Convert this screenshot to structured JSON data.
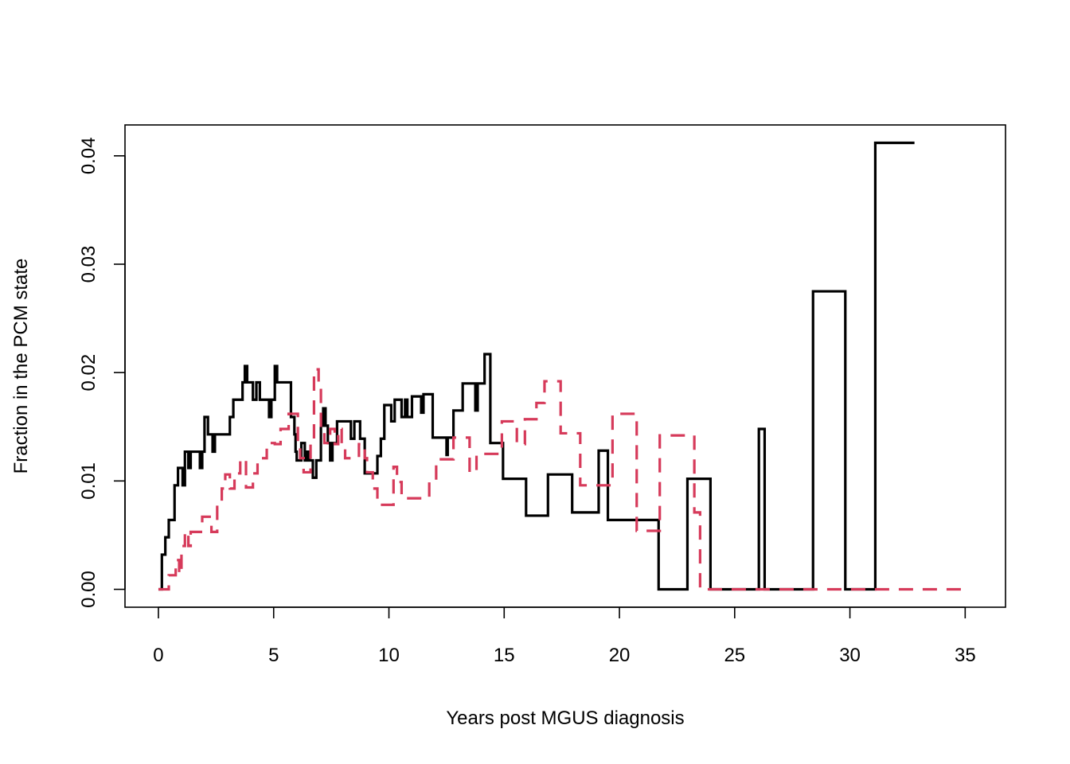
{
  "chart_data": {
    "type": "line",
    "title": "",
    "xlabel": "Years post MGUS diagnosis",
    "ylabel": "Fraction in the PCM state",
    "xlim": [
      -1.45,
      36.75
    ],
    "ylim": [
      -0.00165,
      0.04285
    ],
    "x_ticks": [
      0,
      5,
      10,
      15,
      20,
      25,
      30,
      35
    ],
    "x_tick_labels": [
      "0",
      "5",
      "10",
      "15",
      "20",
      "25",
      "30",
      "35"
    ],
    "y_ticks": [
      0,
      0.01,
      0.02,
      0.03,
      0.04
    ],
    "y_tick_labels": [
      "0.00",
      "0.01",
      "0.02",
      "0.03",
      "0.04"
    ],
    "grid": false,
    "legend": "none",
    "series": [
      {
        "color": "#000000",
        "line_style": "solid",
        "step": true,
        "points": [
          [
            0,
            0
          ],
          [
            0.15,
            0.0032
          ],
          [
            0.3,
            0.0048
          ],
          [
            0.45,
            0.0064
          ],
          [
            0.7,
            0.0096
          ],
          [
            0.85,
            0.0112
          ],
          [
            1.05,
            0.0096
          ],
          [
            1.15,
            0.0127
          ],
          [
            1.3,
            0.0112
          ],
          [
            1.4,
            0.0127
          ],
          [
            1.8,
            0.0112
          ],
          [
            1.9,
            0.0127
          ],
          [
            2.0,
            0.0159
          ],
          [
            2.15,
            0.0143
          ],
          [
            2.35,
            0.0127
          ],
          [
            2.45,
            0.0143
          ],
          [
            3.1,
            0.0159
          ],
          [
            3.25,
            0.0175
          ],
          [
            3.65,
            0.0191
          ],
          [
            3.75,
            0.0206
          ],
          [
            3.85,
            0.0191
          ],
          [
            4.1,
            0.0175
          ],
          [
            4.25,
            0.0191
          ],
          [
            4.4,
            0.0175
          ],
          [
            4.8,
            0.0159
          ],
          [
            4.9,
            0.0175
          ],
          [
            5.05,
            0.0206
          ],
          [
            5.15,
            0.0191
          ],
          [
            5.75,
            0.0159
          ],
          [
            5.9,
            0.0143
          ],
          [
            5.95,
            0.0127
          ],
          [
            6.0,
            0.0119
          ],
          [
            6.2,
            0.0135
          ],
          [
            6.35,
            0.0119
          ],
          [
            6.45,
            0.0127
          ],
          [
            6.55,
            0.0119
          ],
          [
            6.7,
            0.0103
          ],
          [
            6.85,
            0.0119
          ],
          [
            7.05,
            0.0151
          ],
          [
            7.15,
            0.0167
          ],
          [
            7.25,
            0.0151
          ],
          [
            7.35,
            0.0135
          ],
          [
            7.45,
            0.0119
          ],
          [
            7.55,
            0.0135
          ],
          [
            7.75,
            0.0155
          ],
          [
            8.35,
            0.0139
          ],
          [
            8.5,
            0.0155
          ],
          [
            8.75,
            0.0139
          ],
          [
            8.95,
            0.0107
          ],
          [
            9.2,
            0.0107
          ],
          [
            9.5,
            0.0123
          ],
          [
            9.65,
            0.0139
          ],
          [
            9.8,
            0.017
          ],
          [
            10.1,
            0.0155
          ],
          [
            10.25,
            0.0175
          ],
          [
            10.55,
            0.0159
          ],
          [
            10.7,
            0.0175
          ],
          [
            10.8,
            0.0159
          ],
          [
            11.0,
            0.0178
          ],
          [
            11.4,
            0.0163
          ],
          [
            11.5,
            0.018
          ],
          [
            11.9,
            0.014
          ],
          [
            12.5,
            0.0124
          ],
          [
            12.55,
            0.014
          ],
          [
            12.8,
            0.0165
          ],
          [
            13.2,
            0.019
          ],
          [
            13.75,
            0.0165
          ],
          [
            13.85,
            0.019
          ],
          [
            14.15,
            0.0217
          ],
          [
            14.4,
            0.0135
          ],
          [
            14.95,
            0.0102
          ],
          [
            15.95,
            0.0068
          ],
          [
            16.9,
            0.0106
          ],
          [
            17.95,
            0.0071
          ],
          [
            19.1,
            0.0128
          ],
          [
            19.5,
            0.0064
          ],
          [
            21.7,
            0.0
          ],
          [
            22.95,
            0.0102
          ],
          [
            23.95,
            0.0
          ],
          [
            26.05,
            0.0148
          ],
          [
            26.3,
            0.0
          ],
          [
            28.4,
            0.0275
          ],
          [
            29.8,
            0.0
          ],
          [
            31.1,
            0.0412
          ],
          [
            32.8,
            0.0412
          ]
        ]
      },
      {
        "color": "#d63a5a",
        "line_style": "dashed",
        "step": true,
        "points": [
          [
            0,
            0
          ],
          [
            0.45,
            0.0013
          ],
          [
            0.75,
            0.0027
          ],
          [
            0.9,
            0.0014
          ],
          [
            1.0,
            0.004
          ],
          [
            1.15,
            0.0053
          ],
          [
            1.3,
            0.004
          ],
          [
            1.4,
            0.0053
          ],
          [
            1.9,
            0.0067
          ],
          [
            2.3,
            0.0053
          ],
          [
            2.55,
            0.008
          ],
          [
            2.75,
            0.0093
          ],
          [
            2.9,
            0.0106
          ],
          [
            3.1,
            0.0093
          ],
          [
            3.3,
            0.0107
          ],
          [
            3.55,
            0.012
          ],
          [
            3.8,
            0.0094
          ],
          [
            4.1,
            0.0107
          ],
          [
            4.3,
            0.0121
          ],
          [
            4.7,
            0.0135
          ],
          [
            5.05,
            0.0134
          ],
          [
            5.3,
            0.0148
          ],
          [
            5.65,
            0.0162
          ],
          [
            6.05,
            0.0135
          ],
          [
            6.15,
            0.0121
          ],
          [
            6.3,
            0.0108
          ],
          [
            6.6,
            0.0135
          ],
          [
            6.75,
            0.0203
          ],
          [
            6.95,
            0.0189
          ],
          [
            7.05,
            0.0148
          ],
          [
            7.2,
            0.0135
          ],
          [
            7.45,
            0.0148
          ],
          [
            7.65,
            0.0134
          ],
          [
            7.8,
            0.0148
          ],
          [
            7.95,
            0.0134
          ],
          [
            8.1,
            0.0121
          ],
          [
            8.7,
            0.0134
          ],
          [
            8.95,
            0.0121
          ],
          [
            9.05,
            0.0108
          ],
          [
            9.3,
            0.0093
          ],
          [
            9.5,
            0.0078
          ],
          [
            10.2,
            0.0113
          ],
          [
            10.35,
            0.0099
          ],
          [
            10.55,
            0.0084
          ],
          [
            11.25,
            0.0084
          ],
          [
            11.5,
            0.0084
          ],
          [
            11.75,
            0.01
          ],
          [
            12.05,
            0.012
          ],
          [
            12.8,
            0.014
          ],
          [
            13.5,
            0.0108
          ],
          [
            13.8,
            0.0125
          ],
          [
            14.9,
            0.0155
          ],
          [
            15.55,
            0.0134
          ],
          [
            15.9,
            0.0157
          ],
          [
            16.4,
            0.0172
          ],
          [
            16.75,
            0.0192
          ],
          [
            17.45,
            0.0144
          ],
          [
            18.3,
            0.0096
          ],
          [
            19.7,
            0.0162
          ],
          [
            20.75,
            0.0054
          ],
          [
            21.75,
            0.0142
          ],
          [
            23.25,
            0.0071
          ],
          [
            23.5,
            0.0
          ],
          [
            35.0,
            0.0
          ]
        ]
      }
    ]
  }
}
